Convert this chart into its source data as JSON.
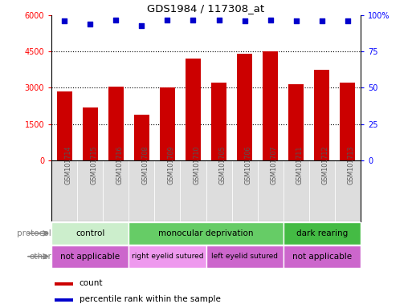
{
  "title": "GDS1984 / 117308_at",
  "samples": [
    "GSM101714",
    "GSM101715",
    "GSM101716",
    "GSM101708",
    "GSM101709",
    "GSM101710",
    "GSM101705",
    "GSM101706",
    "GSM101707",
    "GSM101711",
    "GSM101712",
    "GSM101713"
  ],
  "counts": [
    2850,
    2200,
    3050,
    1900,
    3000,
    4200,
    3200,
    4400,
    4500,
    3150,
    3750,
    3200
  ],
  "percentile_ranks": [
    96,
    94,
    97,
    93,
    97,
    97,
    97,
    96,
    97,
    96,
    96,
    96
  ],
  "ylim_left": [
    0,
    6000
  ],
  "ylim_right": [
    0,
    100
  ],
  "yticks_left": [
    0,
    1500,
    3000,
    4500,
    6000
  ],
  "yticks_right": [
    0,
    25,
    50,
    75,
    100
  ],
  "bar_color": "#cc0000",
  "dot_color": "#0000cc",
  "protocol_groups": [
    {
      "label": "control",
      "start": 0,
      "end": 3,
      "color": "#cceecc"
    },
    {
      "label": "monocular deprivation",
      "start": 3,
      "end": 9,
      "color": "#66cc66"
    },
    {
      "label": "dark rearing",
      "start": 9,
      "end": 12,
      "color": "#44bb44"
    }
  ],
  "other_groups": [
    {
      "label": "not applicable",
      "start": 0,
      "end": 3,
      "color": "#cc66cc"
    },
    {
      "label": "right eyelid sutured",
      "start": 3,
      "end": 6,
      "color": "#ee99ee"
    },
    {
      "label": "left eyelid sutured",
      "start": 6,
      "end": 9,
      "color": "#cc66cc"
    },
    {
      "label": "not applicable",
      "start": 9,
      "end": 12,
      "color": "#cc66cc"
    }
  ],
  "protocol_label": "protocol",
  "other_label": "other",
  "legend_count_label": "count",
  "legend_pct_label": "percentile rank within the sample",
  "sample_bg_color": "#dddddd",
  "tick_label_color": "#555555",
  "background_color": "#ffffff"
}
